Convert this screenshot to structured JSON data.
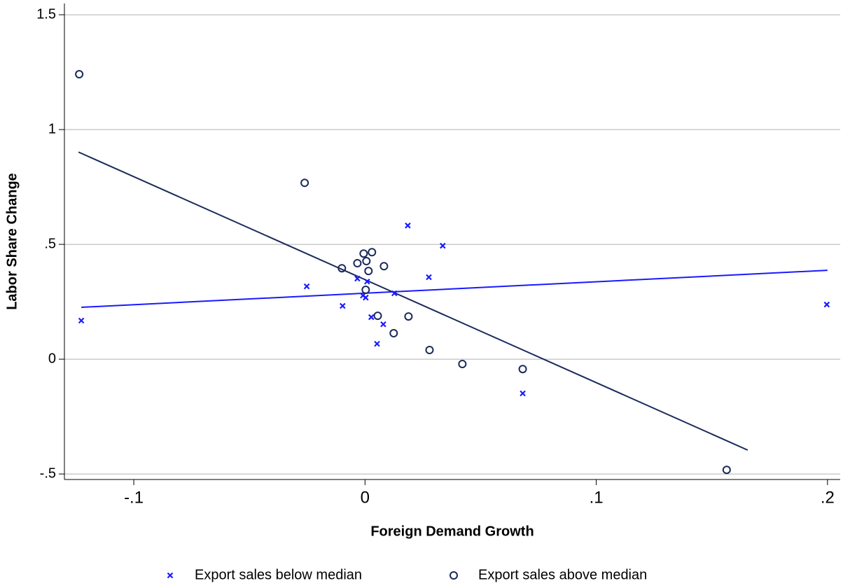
{
  "chart_data": {
    "type": "scatter",
    "x_label": "Foreign Demand Growth",
    "y_label": "Labor Share Change",
    "xlim": [
      -0.13,
      0.2055
    ],
    "ylim": [
      -0.524,
      1.549
    ],
    "xticks": [
      {
        "value": -0.1,
        "label": "-.1"
      },
      0,
      {
        "value": 0.1,
        "label": ".1"
      },
      {
        "value": 0.2,
        "label": ".2"
      }
    ],
    "yticks": [
      {
        "value": -0.5,
        "label": "-.5"
      },
      0,
      {
        "value": 0.5,
        "label": ".5"
      },
      1,
      1.5
    ],
    "grid": true,
    "legend": "bottom",
    "series": [
      {
        "name": "Export sales below median",
        "color": "#1a1aff",
        "marker": "x",
        "x": [
          -0.1227,
          -0.0252,
          -0.0097,
          -0.0033,
          -0.0009,
          0.0003,
          0.0009,
          0.0027,
          0.0052,
          0.0079,
          0.0127,
          0.0185,
          0.0276,
          0.0336,
          0.0682,
          0.1997
        ],
        "values": [
          0.168,
          0.317,
          0.232,
          0.351,
          0.277,
          0.268,
          0.338,
          0.183,
          0.067,
          0.152,
          0.287,
          0.582,
          0.357,
          0.494,
          -0.149,
          0.238
        ]
      },
      {
        "name": "Export sales above median",
        "color": "#1a2a5a",
        "marker": "circle",
        "x": [
          -0.1236,
          -0.0261,
          -0.01,
          -0.0033,
          -0.0006,
          0.0006,
          0.003,
          0.0015,
          0.0082,
          0.0003,
          0.0055,
          0.0124,
          0.0188,
          0.0279,
          0.0421,
          0.0682,
          0.1564
        ],
        "values": [
          1.241,
          0.768,
          0.396,
          0.418,
          0.46,
          0.427,
          0.466,
          0.384,
          0.405,
          0.302,
          0.189,
          0.113,
          0.186,
          0.04,
          -0.021,
          -0.043,
          -0.482
        ]
      }
    ],
    "fit_lines": [
      {
        "color": "#1a2a5a",
        "x": [
          -0.1239,
          0.1655
        ],
        "values": [
          0.902,
          -0.396
        ]
      },
      {
        "color": "#1a1aff",
        "x": [
          -0.1227,
          0.2
        ],
        "values": [
          0.226,
          0.387
        ]
      }
    ]
  }
}
